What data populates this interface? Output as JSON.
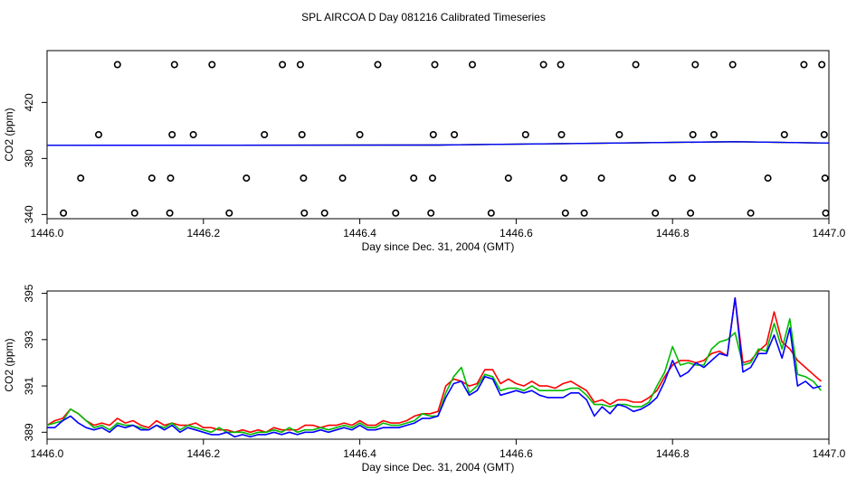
{
  "title": "SPL AIRCOA D  Day 081216  Calibrated Timeseries",
  "chart_data": [
    {
      "type": "scatter",
      "xlabel": "Day since Dec. 31, 2004 (GMT)",
      "ylabel": "CO2 (ppm)",
      "xlim": [
        1446.0,
        1447.0
      ],
      "ylim": [
        337,
        457
      ],
      "xticks": [
        1446.0,
        1446.2,
        1446.4,
        1446.6,
        1446.8,
        1447.0
      ],
      "xtick_labels": [
        "1446.0",
        "1446.2",
        "1446.4",
        "1446.6",
        "1446.8",
        "1447.0"
      ],
      "yticks": [
        340,
        380,
        420
      ],
      "ytick_labels": [
        "340",
        "380",
        "420"
      ],
      "grid": false,
      "legend": "none",
      "points": {
        "x": [
          1446.09,
          1446.163,
          1446.211,
          1446.301,
          1446.324,
          1446.423,
          1446.496,
          1446.544,
          1446.635,
          1446.657,
          1446.753,
          1446.829,
          1446.877,
          1446.968,
          1446.991,
          1446.066,
          1446.16,
          1446.187,
          1446.278,
          1446.326,
          1446.4,
          1446.494,
          1446.521,
          1446.612,
          1446.658,
          1446.732,
          1446.826,
          1446.853,
          1446.943,
          1446.994,
          1446.043,
          1446.134,
          1446.158,
          1446.255,
          1446.328,
          1446.378,
          1446.469,
          1446.493,
          1446.59,
          1446.661,
          1446.709,
          1446.8,
          1446.825,
          1446.922,
          1446.995,
          1446.021,
          1446.112,
          1446.157,
          1446.233,
          1446.329,
          1446.355,
          1446.446,
          1446.491,
          1446.568,
          1446.663,
          1446.687,
          1446.778,
          1446.823,
          1446.9,
          1446.996
        ],
        "y": [
          447,
          447,
          447,
          447,
          447,
          447,
          447,
          447,
          447,
          447,
          447,
          447,
          447,
          447,
          447,
          397,
          397,
          397,
          397,
          397,
          397,
          397,
          397,
          397,
          397,
          397,
          397,
          397,
          397,
          397,
          366,
          366,
          366,
          366,
          366,
          366,
          366,
          366,
          366,
          366,
          366,
          366,
          366,
          366,
          366,
          341,
          341,
          341,
          341,
          341,
          341,
          341,
          341,
          341,
          341,
          341,
          341,
          341,
          341,
          341
        ]
      },
      "series": [
        {
          "color": "#ff0000",
          "x": [
            1446.0,
            1446.5,
            1446.88,
            1447.0
          ],
          "y": [
            389.4,
            389.6,
            392.0,
            391.0
          ]
        },
        {
          "color": "#00bb00",
          "x": [
            1446.0,
            1446.5,
            1446.88,
            1447.0
          ],
          "y": [
            389.4,
            389.6,
            392.0,
            391.0
          ]
        },
        {
          "color": "#0000ff",
          "x": [
            1446.0,
            1446.5,
            1446.88,
            1447.0
          ],
          "y": [
            389.4,
            389.6,
            392.0,
            391.0
          ]
        }
      ]
    },
    {
      "type": "line",
      "xlabel": "Day since Dec. 31, 2004 (GMT)",
      "ylabel": "CO2 (ppm)",
      "xlim": [
        1446.0,
        1447.0
      ],
      "ylim": [
        388.7,
        395.1
      ],
      "xticks": [
        1446.0,
        1446.2,
        1446.4,
        1446.6,
        1446.8,
        1447.0
      ],
      "xtick_labels": [
        "1446.0",
        "1446.2",
        "1446.4",
        "1446.6",
        "1446.8",
        "1447.0"
      ],
      "yticks": [
        389,
        391,
        393,
        395
      ],
      "ytick_labels": [
        "389",
        "391",
        "393",
        "395"
      ],
      "grid": false,
      "legend": "none",
      "x": [
        1446.0,
        1446.01,
        1446.02,
        1446.03,
        1446.04,
        1446.05,
        1446.06,
        1446.07,
        1446.08,
        1446.09,
        1446.1,
        1446.11,
        1446.12,
        1446.13,
        1446.14,
        1446.15,
        1446.16,
        1446.17,
        1446.18,
        1446.19,
        1446.2,
        1446.21,
        1446.22,
        1446.23,
        1446.24,
        1446.25,
        1446.26,
        1446.27,
        1446.28,
        1446.29,
        1446.3,
        1446.31,
        1446.32,
        1446.33,
        1446.34,
        1446.35,
        1446.36,
        1446.37,
        1446.38,
        1446.39,
        1446.4,
        1446.41,
        1446.42,
        1446.43,
        1446.44,
        1446.45,
        1446.46,
        1446.47,
        1446.48,
        1446.49,
        1446.5,
        1446.51,
        1446.52,
        1446.53,
        1446.54,
        1446.55,
        1446.56,
        1446.57,
        1446.58,
        1446.59,
        1446.6,
        1446.61,
        1446.62,
        1446.63,
        1446.64,
        1446.65,
        1446.66,
        1446.67,
        1446.68,
        1446.69,
        1446.7,
        1446.71,
        1446.72,
        1446.73,
        1446.74,
        1446.75,
        1446.76,
        1446.77,
        1446.78,
        1446.79,
        1446.8,
        1446.81,
        1446.82,
        1446.83,
        1446.84,
        1446.85,
        1446.86,
        1446.87,
        1446.88,
        1446.89,
        1446.9,
        1446.91,
        1446.92,
        1446.93,
        1446.94,
        1446.95,
        1446.96,
        1446.97,
        1446.98,
        1446.99
      ],
      "series": [
        {
          "color": "#ff0000",
          "values": [
            389.3,
            389.5,
            389.6,
            390.0,
            389.8,
            389.5,
            389.3,
            389.4,
            389.3,
            389.6,
            389.4,
            389.5,
            389.3,
            389.2,
            389.5,
            389.3,
            389.4,
            389.3,
            389.3,
            389.4,
            389.2,
            389.2,
            389.1,
            389.1,
            389.0,
            389.1,
            389.0,
            389.1,
            389.0,
            389.2,
            389.1,
            389.1,
            389.1,
            389.3,
            389.3,
            389.2,
            389.3,
            389.3,
            389.4,
            389.3,
            389.5,
            389.3,
            389.3,
            389.5,
            389.4,
            389.4,
            389.5,
            389.7,
            389.8,
            389.8,
            389.9,
            391.0,
            391.3,
            391.2,
            391.0,
            391.1,
            391.7,
            391.7,
            391.1,
            391.3,
            391.1,
            391.0,
            391.2,
            391.0,
            391.0,
            390.9,
            391.1,
            391.2,
            391.0,
            390.8,
            390.3,
            390.4,
            390.2,
            390.4,
            390.4,
            390.3,
            390.3,
            390.5,
            390.8,
            391.4,
            391.9,
            392.1,
            392.1,
            392.0,
            392.1,
            392.4,
            392.5,
            392.3,
            394.8,
            392.0,
            392.1,
            392.5,
            392.8,
            394.2,
            392.9,
            392.6,
            392.1,
            391.8,
            391.5,
            391.2
          ]
        },
        {
          "color": "#00bb00",
          "values": [
            389.3,
            389.4,
            389.5,
            390.0,
            389.8,
            389.5,
            389.2,
            389.3,
            389.1,
            389.4,
            389.3,
            389.3,
            389.2,
            389.1,
            389.3,
            389.2,
            389.4,
            389.1,
            389.3,
            389.2,
            389.1,
            389.0,
            389.2,
            389.0,
            389.0,
            389.0,
            388.9,
            389.0,
            389.0,
            389.1,
            389.0,
            389.2,
            389.0,
            389.1,
            389.1,
            389.2,
            389.1,
            389.2,
            389.3,
            389.2,
            389.4,
            389.2,
            389.2,
            389.4,
            389.3,
            389.3,
            389.4,
            389.5,
            389.8,
            389.7,
            389.7,
            390.7,
            391.4,
            391.8,
            390.7,
            391.0,
            391.5,
            391.4,
            390.8,
            390.9,
            390.9,
            390.8,
            391.0,
            390.8,
            390.8,
            390.8,
            390.8,
            390.9,
            390.9,
            390.6,
            390.2,
            390.2,
            390.1,
            390.2,
            390.2,
            390.1,
            390.1,
            390.3,
            391.0,
            391.6,
            392.7,
            391.9,
            392.0,
            391.9,
            391.9,
            392.6,
            392.9,
            393.0,
            393.3,
            391.9,
            392.0,
            392.6,
            392.5,
            393.7,
            392.6,
            393.9,
            391.5,
            391.4,
            391.2,
            390.8
          ]
        },
        {
          "color": "#0000ff",
          "values": [
            389.2,
            389.2,
            389.5,
            389.7,
            389.4,
            389.2,
            389.1,
            389.2,
            389.0,
            389.3,
            389.2,
            389.3,
            389.1,
            389.1,
            389.3,
            389.1,
            389.3,
            389.0,
            389.2,
            389.1,
            389.0,
            388.9,
            388.9,
            389.0,
            388.8,
            388.9,
            388.8,
            388.9,
            388.9,
            389.0,
            388.9,
            389.0,
            388.9,
            389.0,
            389.0,
            389.1,
            389.0,
            389.1,
            389.2,
            389.1,
            389.3,
            389.1,
            389.1,
            389.2,
            389.2,
            389.2,
            389.3,
            389.4,
            389.6,
            389.6,
            389.7,
            390.5,
            391.1,
            391.2,
            390.6,
            390.8,
            391.4,
            391.3,
            390.6,
            390.7,
            390.8,
            390.7,
            390.8,
            390.6,
            390.5,
            390.5,
            390.5,
            390.7,
            390.7,
            390.4,
            389.7,
            390.1,
            389.8,
            390.2,
            390.1,
            389.9,
            390.0,
            390.2,
            390.5,
            391.2,
            392.1,
            391.4,
            391.6,
            392.0,
            391.8,
            392.1,
            392.4,
            392.3,
            394.8,
            391.6,
            391.8,
            392.4,
            392.4,
            393.2,
            392.2,
            393.5,
            391.0,
            391.2,
            390.9,
            391.0
          ]
        }
      ]
    }
  ]
}
